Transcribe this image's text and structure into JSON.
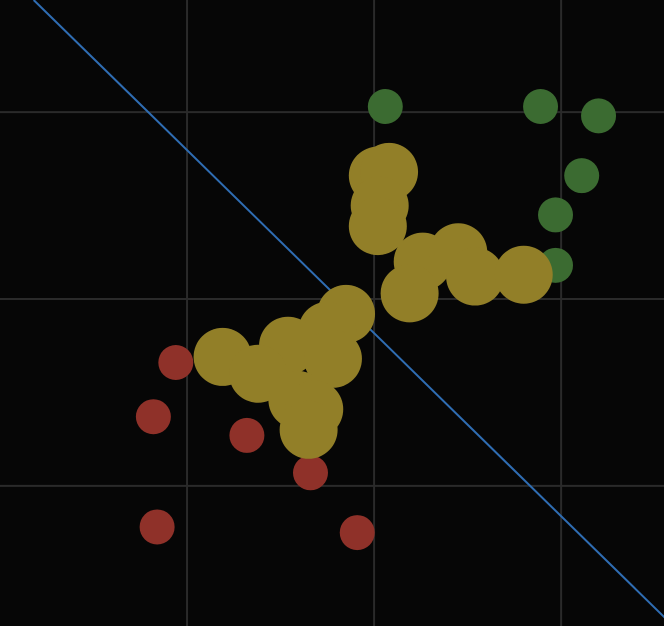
{
  "chart_data": {
    "type": "scatter",
    "title": "",
    "xlabel": "",
    "ylabel": "",
    "grid": true,
    "legend": "none",
    "xlim": [
      -1.0,
      2.55
    ],
    "ylim": [
      -1.75,
      1.6
    ],
    "x_grid": [
      0,
      1,
      2
    ],
    "y_grid": [
      1,
      0,
      -1
    ],
    "decision_boundary": {
      "color": "#2f6db3",
      "points": [
        [
          -0.82,
          1.6
        ],
        [
          2.6,
          -1.75
        ]
      ]
    },
    "series": [
      {
        "color": "#8f3129",
        "point_style": "small",
        "points": [
          [
            -0.06,
            -0.34
          ],
          [
            -0.18,
            -0.63
          ],
          [
            0.32,
            -0.73
          ],
          [
            0.66,
            -0.93
          ],
          [
            -0.16,
            -1.22
          ],
          [
            0.91,
            -1.25
          ]
        ]
      },
      {
        "color": "#3b6b31",
        "point_style": "small",
        "points": [
          [
            1.06,
            1.03
          ],
          [
            1.89,
            1.03
          ],
          [
            2.2,
            0.98
          ],
          [
            2.11,
            0.66
          ],
          [
            1.97,
            0.45
          ],
          [
            1.97,
            0.18
          ]
        ]
      },
      {
        "color": "#927f28",
        "point_style": "large",
        "points": [
          [
            1.02,
            0.66
          ],
          [
            1.08,
            0.68
          ],
          [
            1.03,
            0.5
          ],
          [
            1.02,
            0.39
          ],
          [
            1.26,
            0.2
          ],
          [
            1.45,
            0.25
          ],
          [
            1.54,
            0.12
          ],
          [
            1.8,
            0.13
          ],
          [
            1.19,
            0.03
          ],
          [
            0.85,
            -0.08
          ],
          [
            0.75,
            -0.17
          ],
          [
            0.54,
            -0.25
          ],
          [
            0.78,
            -0.32
          ],
          [
            0.19,
            -0.31
          ],
          [
            0.38,
            -0.4
          ],
          [
            0.59,
            -0.54
          ],
          [
            0.68,
            -0.59
          ],
          [
            0.65,
            -0.7
          ]
        ]
      }
    ]
  }
}
